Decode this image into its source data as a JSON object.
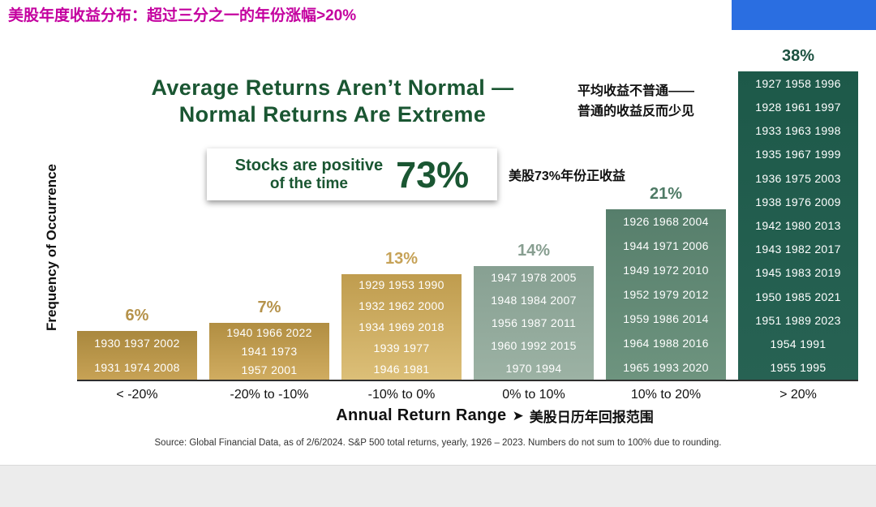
{
  "page": {
    "top_title": "美股年度收益分布：超过三分之一的年份涨幅>20%",
    "colors": {
      "top_title_magenta": "#c4009f",
      "accent_bar_blue": "#2a6ee1",
      "title_green": "#1a5632"
    },
    "icons": {
      "xlabel_arrow_glyph": "➤"
    }
  },
  "chart_data": {
    "type": "bar",
    "title_line1": "Average Returns Aren’t Normal —",
    "title_line2": "Normal Returns Are Extreme",
    "cn_title_line1": "平均收益不普通——",
    "cn_title_line2": "普通的收益反而少见",
    "positive_callout": {
      "line1": "Stocks are positive",
      "line2": "of the time",
      "value": "73%",
      "cn_note": "美股73%年份正收益"
    },
    "ylabel": "Frequency of Occurrence",
    "xlabel": "Annual Return Range",
    "xlabel_cn": "美股日历年回报范围",
    "categories": [
      "< -20%",
      "-20% to -10%",
      "-10% to 0%",
      "0% to 10%",
      "10% to 20%",
      "> 20%"
    ],
    "values": [
      6,
      7,
      13,
      14,
      21,
      38
    ],
    "ylim": [
      0,
      40
    ],
    "grid": false,
    "legend": false,
    "bars": [
      {
        "category": "< -20%",
        "pct": "6%",
        "value": 6,
        "label_color": "#b5924a",
        "color_top": "#a9883e",
        "color_bottom": "#c7a255",
        "year_rows": [
          "1930 1937 2002",
          "1931 1974 2008"
        ]
      },
      {
        "category": "-20% to -10%",
        "pct": "7%",
        "value": 7,
        "label_color": "#b5924a",
        "color_top": "#b18e42",
        "color_bottom": "#d0ac60",
        "year_rows": [
          "1940 1966 2022",
          "1941 1973",
          "1957 2001"
        ]
      },
      {
        "category": "-10% to 0%",
        "pct": "13%",
        "value": 13,
        "label_color": "#c6a257",
        "color_top": "#bf9c4e",
        "color_bottom": "#dcbf78",
        "year_rows": [
          "1929 1953 1990",
          "1932 1962 2000",
          "1934 1969 2018",
          "1939 1977",
          "1946 1981"
        ]
      },
      {
        "category": "0% to 10%",
        "pct": "14%",
        "value": 14,
        "label_color": "#879e90",
        "color_top": "#87a092",
        "color_bottom": "#9cb2a4",
        "year_rows": [
          "1947 1978 2005",
          "1948 1984 2007",
          "1956 1987 2011",
          "1960 1992 2015",
          "1970 1994"
        ]
      },
      {
        "category": "10% to 20%",
        "pct": "21%",
        "value": 21,
        "label_color": "#4e7a65",
        "color_top": "#567e6b",
        "color_bottom": "#6e947f",
        "year_rows": [
          "1926 1968 2004",
          "1944 1971 2006",
          "1949 1972 2010",
          "1952 1979 2012",
          "1959 1986 2014",
          "1964 1988 2016",
          "1965 1993 2020"
        ]
      },
      {
        "category": "> 20%",
        "pct": "38%",
        "value": 38,
        "label_color": "#1c5140",
        "color_top": "#1d5949",
        "color_bottom": "#276253",
        "year_rows": [
          "1927 1958 1996",
          "1928 1961 1997",
          "1933 1963 1998",
          "1935 1967 1999",
          "1936 1975 2003",
          "1938 1976 2009",
          "1942 1980 2013",
          "1943 1982 2017",
          "1945 1983 2019",
          "1950 1985 2021",
          "1951 1989 2023",
          "1954 1991",
          "1955 1995"
        ]
      }
    ],
    "source": "Source: Global Financial Data, as of 2/6/2024. S&P 500 total returns, yearly, 1926 – 2023. Numbers do not sum to 100% due to rounding."
  }
}
